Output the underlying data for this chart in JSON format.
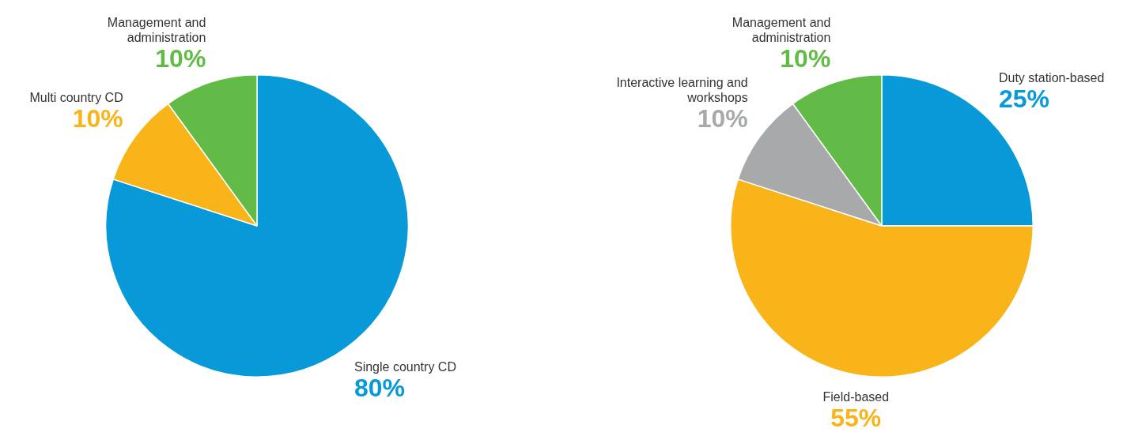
{
  "chart_data": [
    {
      "type": "pie",
      "categories": [
        "Single country CD",
        "Multi country CD",
        "Management and administration"
      ],
      "values": [
        80,
        10,
        10
      ],
      "colors": [
        "#0799d8",
        "#f8b418",
        "#62bb46"
      ],
      "value_labels": [
        "80%",
        "10%",
        "10%"
      ],
      "legend": false
    },
    {
      "type": "pie",
      "categories": [
        "Duty station-based",
        "Field-based",
        "Interactive learning and workshops",
        "Management and administration"
      ],
      "values": [
        25,
        55,
        10,
        10
      ],
      "colors": [
        "#0799d8",
        "#f8b418",
        "#a7a9aa",
        "#62bb46"
      ],
      "value_labels": [
        "25%",
        "55%",
        "10%",
        "10%"
      ],
      "legend": false
    }
  ]
}
